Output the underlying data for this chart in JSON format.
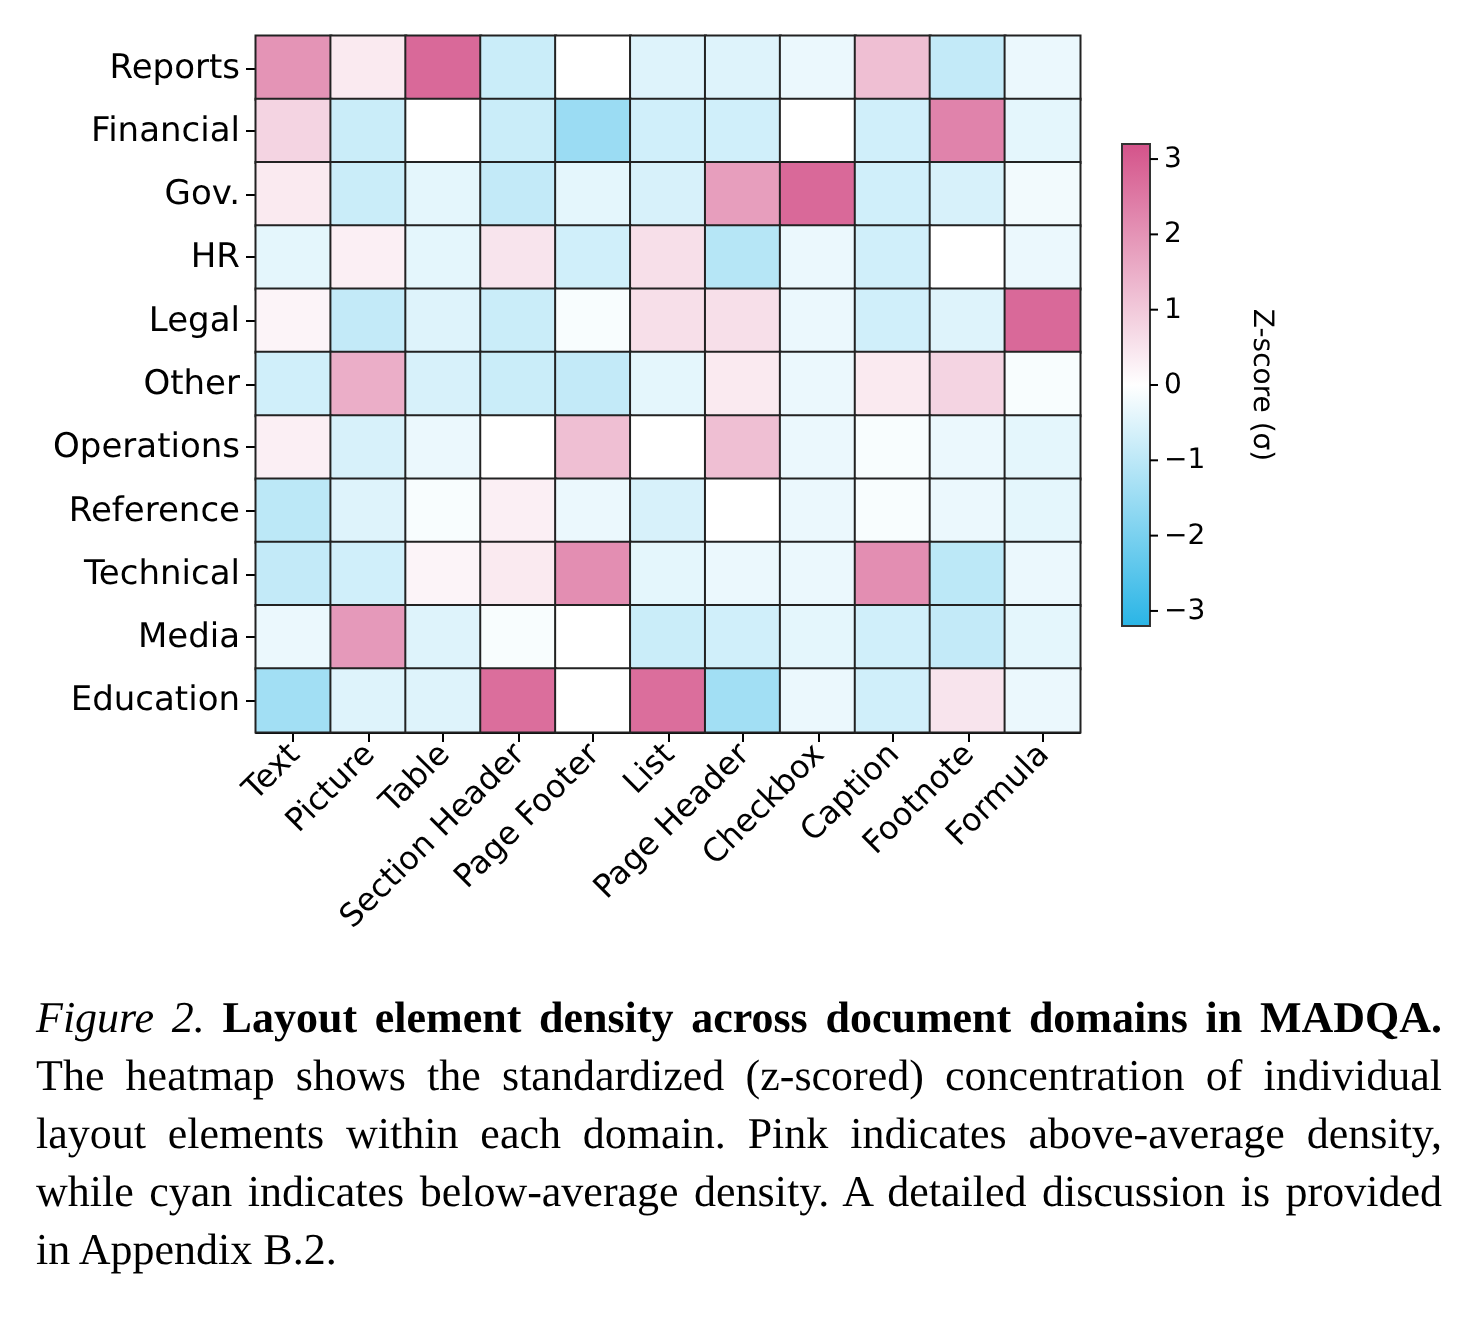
{
  "chart_data": {
    "type": "heatmap",
    "title": "Figure 2. Layout element density across document domains in MADQA.",
    "annotations": [
      "The heatmap shows the standardized (z-scored) concentration of individual layout elements within each domain. Pink indicates above-average density, while cyan indicates below-average density. A detailed discussion is provided in Appendix B.2."
    ],
    "clabel": "Z-score (σ)",
    "categories": [
      "Text",
      "Picture",
      "Table",
      "Section Header",
      "Page Footer",
      "List",
      "Page Header",
      "Checkbox",
      "Caption",
      "Footnote",
      "Formula"
    ],
    "y_categories": [
      "Reports",
      "Financial",
      "Gov.",
      "HR",
      "Legal",
      "Other",
      "Operations",
      "Reference",
      "Technical",
      "Media",
      "Education"
    ],
    "cells": [
      [
        2.0,
        0.4,
        2.8,
        -0.8,
        0.0,
        -0.5,
        -0.5,
        -0.3,
        1.2,
        -0.9,
        -0.3
      ],
      [
        0.8,
        -0.8,
        0.0,
        -0.8,
        -1.5,
        -0.7,
        -0.7,
        0.0,
        -0.7,
        2.3,
        -0.4
      ],
      [
        0.4,
        -0.8,
        -0.4,
        -0.9,
        -0.4,
        -0.6,
        1.8,
        2.8,
        -0.7,
        -0.6,
        -0.2
      ],
      [
        -0.4,
        0.3,
        -0.4,
        0.5,
        -0.7,
        0.6,
        -1.1,
        -0.3,
        -0.7,
        0.0,
        -0.3
      ],
      [
        0.2,
        -0.9,
        -0.5,
        -0.8,
        -0.1,
        0.6,
        0.6,
        -0.3,
        -0.7,
        -0.5,
        2.8
      ],
      [
        -0.7,
        1.5,
        -0.6,
        -0.8,
        -0.9,
        -0.4,
        0.4,
        -0.3,
        0.4,
        0.8,
        -0.1
      ],
      [
        0.3,
        -0.6,
        -0.3,
        0.0,
        1.2,
        0.0,
        1.2,
        -0.3,
        -0.1,
        -0.3,
        -0.4
      ],
      [
        -1.0,
        -0.5,
        -0.1,
        0.3,
        -0.3,
        -0.6,
        0.0,
        -0.3,
        -0.1,
        -0.3,
        -0.4
      ],
      [
        -0.9,
        -0.7,
        0.2,
        0.4,
        2.1,
        -0.4,
        -0.3,
        -0.3,
        2.1,
        -1.0,
        -0.3
      ],
      [
        -0.3,
        1.9,
        -0.5,
        -0.1,
        0.0,
        -0.8,
        -0.7,
        -0.4,
        -0.7,
        -0.9,
        -0.4
      ],
      [
        -1.4,
        -0.5,
        -0.5,
        2.7,
        0.0,
        2.7,
        -1.4,
        -0.3,
        -0.7,
        0.5,
        -0.3
      ]
    ],
    "clim": [
      -3.2,
      3.2
    ],
    "cticks": [
      -3,
      -2,
      -1,
      0,
      1,
      2,
      3
    ]
  }
}
